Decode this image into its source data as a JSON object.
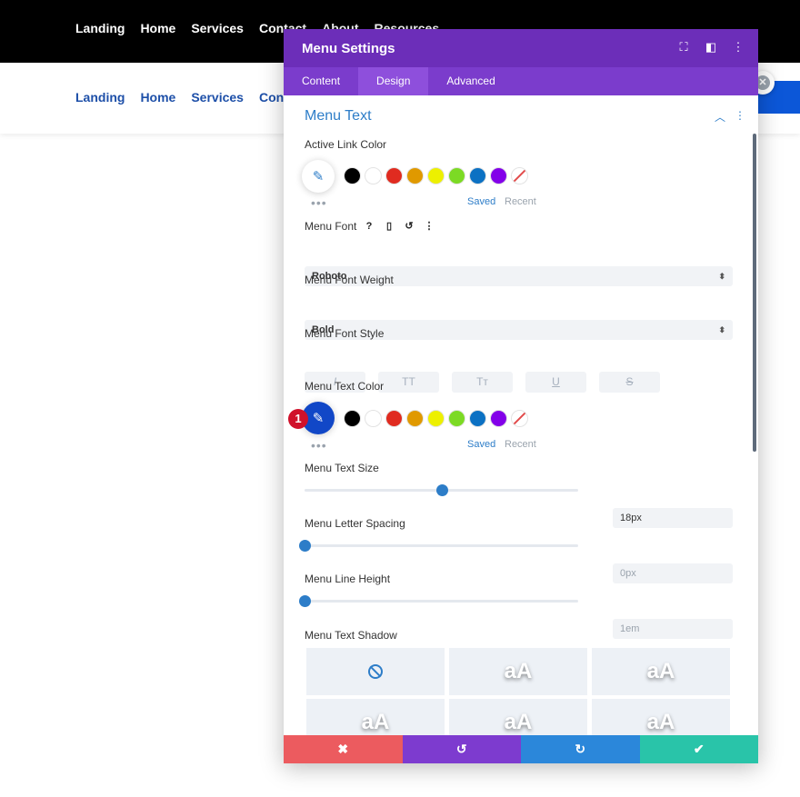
{
  "site": {
    "nav_top": [
      "Landing",
      "Home",
      "Services",
      "Contact",
      "About",
      "Resources"
    ],
    "nav_sub": [
      "Landing",
      "Home",
      "Services",
      "Contact"
    ]
  },
  "modal": {
    "title": "Menu Settings",
    "tabs": [
      "Content",
      "Design",
      "Advanced"
    ],
    "active_tab": "Design",
    "section_title": "Menu Text",
    "active_link_color": {
      "label": "Active Link Color",
      "saved_label": "Saved",
      "recent_label": "Recent"
    },
    "swatch_colors": [
      "#000000",
      "#ffffff",
      "#e02b20",
      "#e09900",
      "#edf000",
      "#7cda24",
      "#0c71c3",
      "#8300e9"
    ],
    "menu_font": {
      "label": "Menu Font",
      "value": "Roboto"
    },
    "menu_font_weight": {
      "label": "Menu Font Weight",
      "value": "Bold"
    },
    "menu_font_style": {
      "label": "Menu Font Style",
      "options": [
        "I",
        "TT",
        "Tт",
        "U",
        "S"
      ]
    },
    "menu_text_color": {
      "label": "Menu Text Color",
      "saved_label": "Saved",
      "recent_label": "Recent",
      "selected": "#1147c7"
    },
    "menu_text_size": {
      "label": "Menu Text Size",
      "value": "18px",
      "fraction": 0.5
    },
    "menu_letter_spacing": {
      "label": "Menu Letter Spacing",
      "value": "0px",
      "fraction": 0
    },
    "menu_line_height": {
      "label": "Menu Line Height",
      "value": "1em",
      "fraction": 0
    },
    "menu_text_shadow": {
      "label": "Menu Text Shadow",
      "preview_text": "aA"
    },
    "footer": {
      "cancel": "✖",
      "undo": "↺",
      "redo": "↻",
      "save": "✔"
    },
    "badge": "1"
  }
}
